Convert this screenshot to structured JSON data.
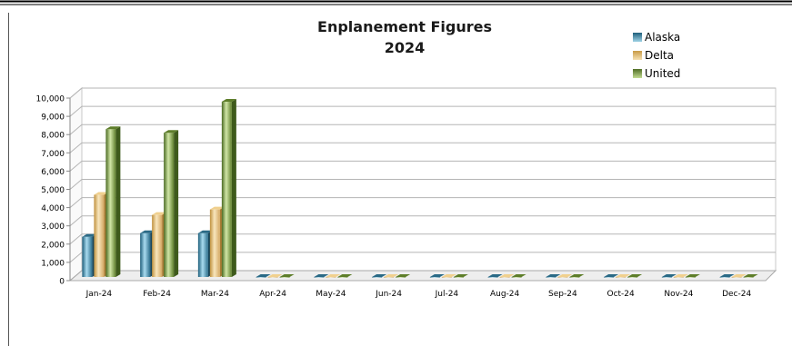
{
  "chart_data": {
    "type": "bar",
    "title_lines": [
      "Enplanement Figures",
      "2024"
    ],
    "categories": [
      "Jan-24",
      "Feb-24",
      "Mar-24",
      "Apr-24",
      "May-24",
      "Jun-24",
      "Jul-24",
      "Aug-24",
      "Sep-24",
      "Oct-24",
      "Nov-24",
      "Dec-24"
    ],
    "series": [
      {
        "name": "Alaska",
        "color": "#2b6f8d",
        "values": [
          2200,
          2400,
          2400,
          0,
          0,
          0,
          0,
          0,
          0,
          0,
          0,
          0
        ]
      },
      {
        "name": "Delta",
        "color": "#e3c07a",
        "values": [
          4500,
          3400,
          3700,
          0,
          0,
          0,
          0,
          0,
          0,
          0,
          0,
          0
        ]
      },
      {
        "name": "United",
        "color": "#6f8f35",
        "values": [
          8100,
          7900,
          9600,
          0,
          0,
          0,
          0,
          0,
          0,
          0,
          0,
          0
        ]
      }
    ],
    "yticks": [
      "0",
      "1,000",
      "2,000",
      "3,000",
      "4,000",
      "5,000",
      "6,000",
      "7,000",
      "8,000",
      "9,000",
      "10,000"
    ],
    "ylim": [
      0,
      10000
    ],
    "grid": true,
    "legend_position": "top-right"
  }
}
